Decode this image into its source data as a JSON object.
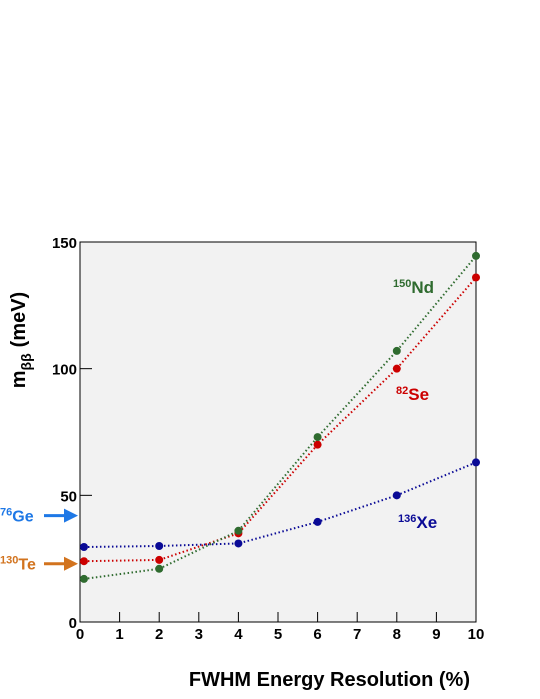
{
  "chart_data": {
    "type": "line",
    "x_label": "FWHM Energy Resolution (%)",
    "y_label": {
      "symbol": "m",
      "subscript": "ββ",
      "unit": "(meV)"
    },
    "x": [
      0.1,
      2,
      4,
      6,
      8,
      10
    ],
    "series": [
      {
        "name": "Xe",
        "mass_number": "136",
        "color": "#0a0a96",
        "values": [
          29.6,
          30,
          31,
          39.5,
          50,
          63
        ]
      },
      {
        "name": "Se",
        "mass_number": "82",
        "color": "#cc0000",
        "values": [
          24,
          24.5,
          35,
          70,
          100,
          136
        ]
      },
      {
        "name": "Nd",
        "mass_number": "150",
        "color": "#2f6b2f",
        "values": [
          17,
          21,
          36,
          73,
          107,
          144.5
        ]
      }
    ],
    "annotations": [
      {
        "name": "Ge",
        "mass_number": "76",
        "value": 42,
        "color": "#1e78e6"
      },
      {
        "name": "Te",
        "mass_number": "130",
        "value": 23,
        "color": "#d2731e"
      }
    ],
    "xlim": [
      0,
      10
    ],
    "ylim": [
      0,
      150
    ],
    "xticks": [
      0,
      1,
      2,
      3,
      4,
      5,
      6,
      7,
      8,
      9,
      10
    ],
    "yticks": [
      0,
      50,
      100,
      150
    ]
  }
}
